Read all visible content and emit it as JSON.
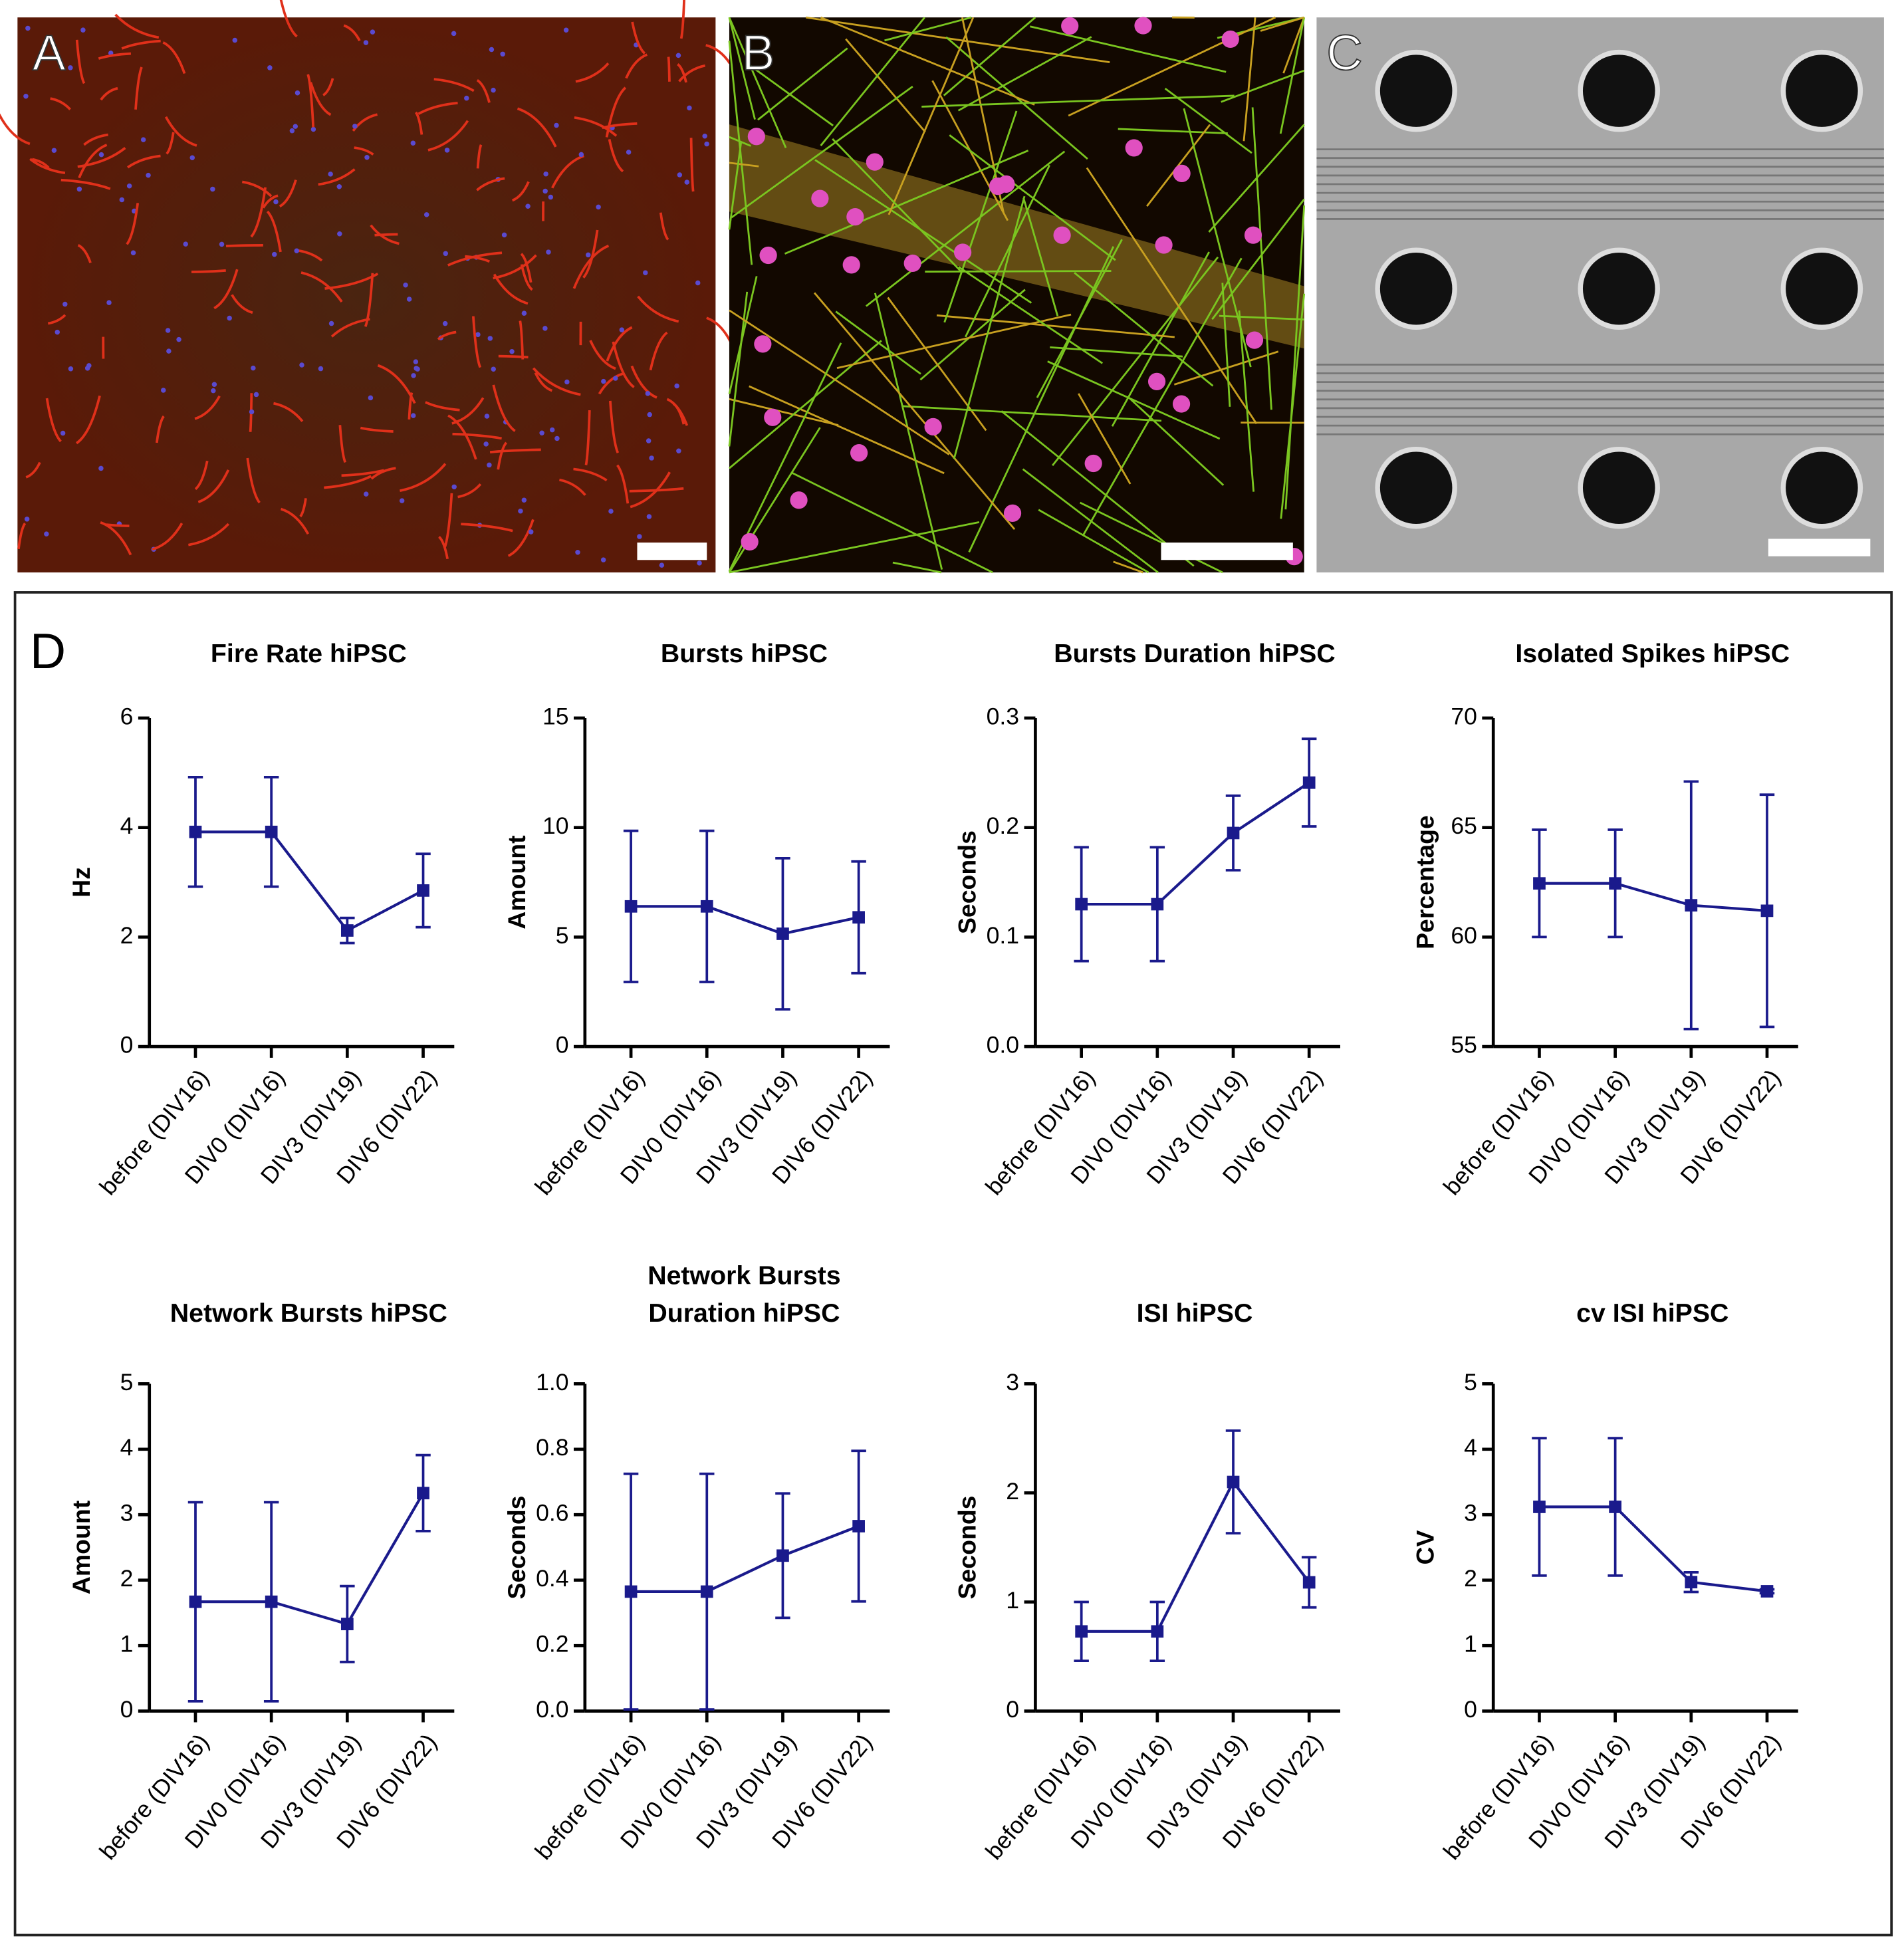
{
  "panels": [
    "A",
    "B",
    "C",
    "D"
  ],
  "chart_data": [
    {
      "type": "line",
      "title": "Fire Rate hiPSC",
      "ylabel": "Hz",
      "categories": [
        "before (DIV16)",
        "DIV0 (DIV16)",
        "DIV3 (DIV19)",
        "DIV6 (DIV22)"
      ],
      "values": [
        3.92,
        3.92,
        2.12,
        2.85
      ],
      "errors": [
        1.0,
        1.0,
        0.23,
        0.67
      ],
      "color": "#1a1a8c",
      "ylim": [
        0,
        6
      ],
      "yticks": [
        0,
        2,
        4,
        6
      ]
    },
    {
      "type": "line",
      "title": "Bursts hiPSC",
      "ylabel": "Amount",
      "categories": [
        "before (DIV16)",
        "DIV0 (DIV16)",
        "DIV3 (DIV19)",
        "DIV6 (DIV22)"
      ],
      "values": [
        6.4,
        6.4,
        5.15,
        5.9
      ],
      "errors": [
        3.45,
        3.45,
        3.45,
        2.55
      ],
      "color": "#1a1a8c",
      "ylim": [
        0,
        15
      ],
      "yticks": [
        0,
        5,
        10,
        15
      ]
    },
    {
      "type": "line",
      "title": "Bursts Duration hiPSC",
      "ylabel": "Seconds",
      "categories": [
        "before (DIV16)",
        "DIV0 (DIV16)",
        "DIV3 (DIV19)",
        "DIV6 (DIV22)"
      ],
      "values": [
        0.13,
        0.13,
        0.195,
        0.241
      ],
      "errors": [
        0.052,
        0.052,
        0.034,
        0.04
      ],
      "color": "#1a1a8c",
      "ylim": [
        0,
        0.3
      ],
      "yticks": [
        {
          "value": 0,
          "label": "0.0"
        },
        0.1,
        0.2,
        0.3
      ]
    },
    {
      "type": "line",
      "title": "Isolated Spikes hiPSC",
      "ylabel": "Percentage",
      "categories": [
        "before (DIV16)",
        "DIV0 (DIV16)",
        "DIV3 (DIV19)",
        "DIV6 (DIV22)"
      ],
      "values": [
        62.45,
        62.45,
        61.45,
        61.2
      ],
      "errors": [
        2.45,
        2.45,
        5.65,
        5.3
      ],
      "color": "#1a1a8c",
      "ylim": [
        55,
        70
      ],
      "yticks": [
        55,
        60,
        65,
        70
      ]
    },
    {
      "type": "line",
      "title": "Network Bursts hiPSC",
      "ylabel": "Amount",
      "categories": [
        "before (DIV16)",
        "DIV0 (DIV16)",
        "DIV3 (DIV19)",
        "DIV6 (DIV22)"
      ],
      "values": [
        1.67,
        1.67,
        1.33,
        3.33
      ],
      "errors": [
        1.52,
        1.52,
        0.58,
        0.58
      ],
      "color": "#1a1a8c",
      "ylim": [
        0,
        5
      ],
      "yticks": [
        0,
        1,
        2,
        3,
        4,
        5
      ]
    },
    {
      "type": "line",
      "title": [
        "Network Bursts",
        "Duration hiPSC"
      ],
      "ylabel": "Seconds",
      "categories": [
        "before (DIV16)",
        "DIV0 (DIV16)",
        "DIV3 (DIV19)",
        "DIV6 (DIV22)"
      ],
      "values": [
        0.365,
        0.365,
        0.475,
        0.565
      ],
      "errors": [
        0.36,
        0.36,
        0.19,
        0.23
      ],
      "color": "#1a1a8c",
      "ylim": [
        0,
        1
      ],
      "yticks": [
        {
          "value": 0,
          "label": "0.0"
        },
        0.2,
        0.4,
        0.6,
        0.8,
        {
          "value": 1,
          "label": "1.0"
        }
      ]
    },
    {
      "type": "line",
      "title": "ISI hiPSC",
      "ylabel": "Seconds",
      "categories": [
        "before (DIV16)",
        "DIV0 (DIV16)",
        "DIV3 (DIV19)",
        "DIV6 (DIV22)"
      ],
      "values": [
        0.73,
        0.73,
        2.1,
        1.18
      ],
      "errors": [
        0.27,
        0.27,
        0.47,
        0.23
      ],
      "color": "#1a1a8c",
      "ylim": [
        0,
        3
      ],
      "yticks": [
        0,
        1,
        2,
        3
      ]
    },
    {
      "type": "line",
      "title": "cv ISI hiPSC",
      "ylabel": "CV",
      "categories": [
        "before (DIV16)",
        "DIV0 (DIV16)",
        "DIV3 (DIV19)",
        "DIV6 (DIV22)"
      ],
      "values": [
        3.12,
        3.12,
        1.97,
        1.83
      ],
      "errors": [
        1.05,
        1.05,
        0.15,
        0.03
      ],
      "color": "#1a1a8c",
      "ylim": [
        0,
        5
      ],
      "yticks": [
        0,
        1,
        2,
        3,
        4,
        5
      ]
    }
  ]
}
